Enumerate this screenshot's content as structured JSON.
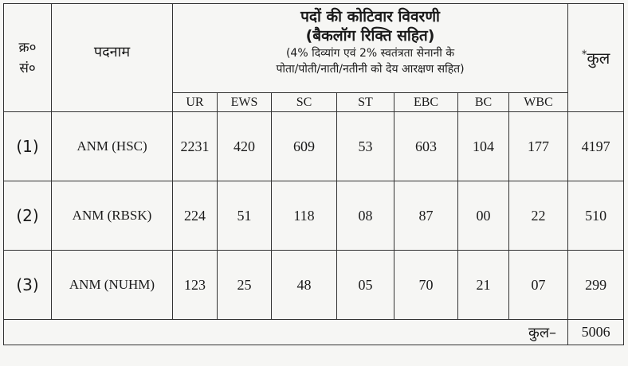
{
  "header": {
    "serial_label_line1": "क्र०",
    "serial_label_line2": "सं०",
    "post_label": "पदनाम",
    "breakdown_title_line1": "पदों की कोटिवार विवरणी",
    "breakdown_title_line2": "(बैकलॉग रिक्ति सहित)",
    "breakdown_note_line1": "(4% दिव्यांग एवं 2% स्वतंत्रता सेनानी के",
    "breakdown_note_line2": "पोता/पोती/नाती/नतीनी को देय आरक्षण सहित)",
    "total_star": "*",
    "total_label": "कुल",
    "categories": [
      "UR",
      "EWS",
      "SC",
      "ST",
      "EBC",
      "BC",
      "WBC"
    ]
  },
  "rows": [
    {
      "serial": "(1)",
      "post": "ANM (HSC)",
      "values": [
        "2231",
        "420",
        "609",
        "53",
        "603",
        "104",
        "177"
      ],
      "total": "4197"
    },
    {
      "serial": "(2)",
      "post": "ANM (RBSK)",
      "values": [
        "224",
        "51",
        "118",
        "08",
        "87",
        "00",
        "22"
      ],
      "total": "510"
    },
    {
      "serial": "(3)",
      "post": "ANM (NUHM)",
      "values": [
        "123",
        "25",
        "48",
        "05",
        "70",
        "21",
        "07"
      ],
      "total": "299"
    }
  ],
  "grand_total": {
    "label": "कुल–",
    "value": "5006"
  }
}
